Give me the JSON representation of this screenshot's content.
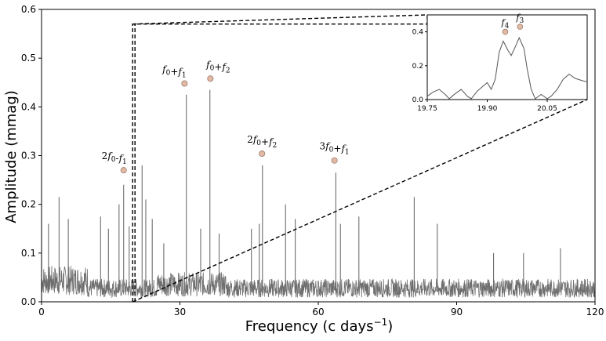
{
  "chart_data": {
    "type": "line",
    "xlabel": "Frequency (c days",
    "xlabel_sup": "−1",
    "xlabel_close": ")",
    "ylabel": "Amplitude (mmag)",
    "xlim": [
      0,
      120
    ],
    "ylim": [
      0,
      0.6
    ],
    "xticks": [
      0,
      30,
      60,
      90,
      120
    ],
    "yticks": [
      0.0,
      0.1,
      0.2,
      0.3,
      0.4,
      0.5,
      0.6
    ],
    "series_color": "#6e6e6e",
    "marker_color": "#e3b9a4",
    "peaks": [
      {
        "x": 1.5,
        "y": 0.16
      },
      {
        "x": 3.8,
        "y": 0.215
      },
      {
        "x": 5.8,
        "y": 0.17
      },
      {
        "x": 12.8,
        "y": 0.175
      },
      {
        "x": 14.5,
        "y": 0.15
      },
      {
        "x": 16.8,
        "y": 0.2
      },
      {
        "x": 17.8,
        "y": 0.24
      },
      {
        "x": 19.0,
        "y": 0.155
      },
      {
        "x": 21.8,
        "y": 0.28
      },
      {
        "x": 22.6,
        "y": 0.21
      },
      {
        "x": 24.0,
        "y": 0.17
      },
      {
        "x": 26.5,
        "y": 0.12
      },
      {
        "x": 31.4,
        "y": 0.425
      },
      {
        "x": 34.5,
        "y": 0.15
      },
      {
        "x": 36.5,
        "y": 0.435
      },
      {
        "x": 38.5,
        "y": 0.14
      },
      {
        "x": 45.5,
        "y": 0.15
      },
      {
        "x": 47.2,
        "y": 0.16
      },
      {
        "x": 47.9,
        "y": 0.28
      },
      {
        "x": 52.9,
        "y": 0.2
      },
      {
        "x": 55.0,
        "y": 0.17
      },
      {
        "x": 63.8,
        "y": 0.265
      },
      {
        "x": 64.8,
        "y": 0.16
      },
      {
        "x": 68.8,
        "y": 0.175
      },
      {
        "x": 80.8,
        "y": 0.215
      },
      {
        "x": 85.8,
        "y": 0.16
      },
      {
        "x": 98.0,
        "y": 0.1
      },
      {
        "x": 104.5,
        "y": 0.1
      },
      {
        "x": 112.5,
        "y": 0.11
      }
    ],
    "annotations": [
      {
        "label_html": "2<i>f</i><tspan baseline-shift='sub' font-size='9'>0</tspan>-<i>f</i><tspan baseline-shift='sub' font-size='9'>1</tspan>",
        "text": "2f0-f1",
        "x": 17.8,
        "y": 0.27
      },
      {
        "text": "f0+f1",
        "x": 31.0,
        "y": 0.448
      },
      {
        "text": "f0+f2",
        "x": 36.6,
        "y": 0.458
      },
      {
        "text": "2f0+f2",
        "x": 47.8,
        "y": 0.304
      },
      {
        "text": "3f0+f1",
        "x": 63.5,
        "y": 0.29
      }
    ],
    "inset": {
      "xlim": [
        19.75,
        20.15
      ],
      "ylim": [
        0.0,
        0.5
      ],
      "xticks": [
        "19.75",
        "19.90",
        "20.05"
      ],
      "xtick_values": [
        19.75,
        19.9,
        20.05
      ],
      "yticks": [
        "0.0",
        "0.2",
        "0.4"
      ],
      "ytick_values": [
        0.0,
        0.2,
        0.4
      ],
      "zoom_region_x": [
        19.75,
        20.15
      ],
      "zoom_region_y": [
        0.0,
        0.57
      ],
      "curve": [
        [
          19.75,
          0.02
        ],
        [
          19.765,
          0.045
        ],
        [
          19.78,
          0.06
        ],
        [
          19.795,
          0.03
        ],
        [
          19.805,
          0.005
        ],
        [
          19.82,
          0.035
        ],
        [
          19.835,
          0.06
        ],
        [
          19.85,
          0.02
        ],
        [
          19.86,
          0.005
        ],
        [
          19.875,
          0.05
        ],
        [
          19.89,
          0.08
        ],
        [
          19.9,
          0.1
        ],
        [
          19.91,
          0.06
        ],
        [
          19.92,
          0.12
        ],
        [
          19.93,
          0.28
        ],
        [
          19.94,
          0.345
        ],
        [
          19.952,
          0.29
        ],
        [
          19.96,
          0.26
        ],
        [
          19.968,
          0.3
        ],
        [
          19.98,
          0.365
        ],
        [
          19.992,
          0.3
        ],
        [
          20.0,
          0.18
        ],
        [
          20.01,
          0.06
        ],
        [
          20.02,
          0.005
        ],
        [
          20.035,
          0.03
        ],
        [
          20.05,
          0.005
        ],
        [
          20.06,
          0.02
        ],
        [
          20.075,
          0.06
        ],
        [
          20.09,
          0.12
        ],
        [
          20.105,
          0.15
        ],
        [
          20.12,
          0.125
        ],
        [
          20.14,
          0.11
        ],
        [
          20.15,
          0.105
        ]
      ],
      "markers": [
        {
          "text": "f4",
          "x": 19.945,
          "y": 0.4
        },
        {
          "text": "f3",
          "x": 19.982,
          "y": 0.43
        }
      ]
    }
  }
}
